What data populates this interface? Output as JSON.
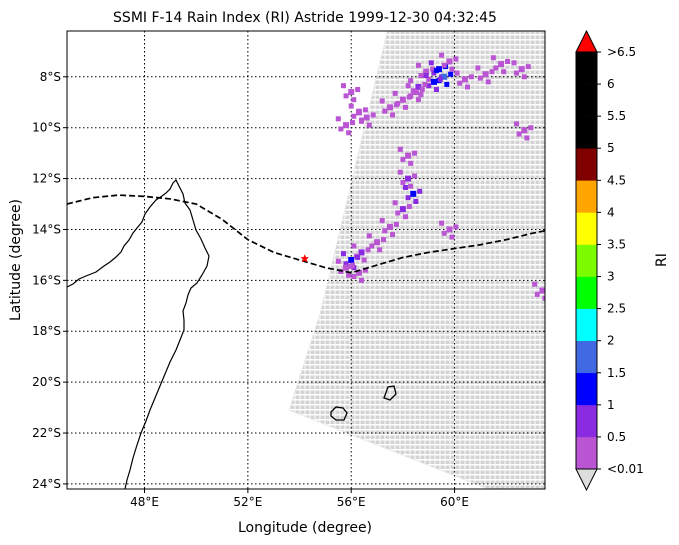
{
  "chart_data": {
    "type": "heatmap",
    "title": "SSMI F-14 Rain Index (RI) Astride 1999-12-30 04:32:45",
    "xlabel": "Longitude (degree)",
    "ylabel": "Latitude (degree)",
    "xlim": [
      45,
      63.5
    ],
    "ylim": [
      -24.2,
      -6.2
    ],
    "x_ticks": [
      48,
      52,
      56,
      60
    ],
    "x_tick_labels": [
      "48°E",
      "52°E",
      "56°E",
      "60°E"
    ],
    "y_ticks": [
      -8,
      -10,
      -12,
      -14,
      -16,
      -18,
      -20,
      -22,
      -24
    ],
    "y_tick_labels": [
      "8°S",
      "10°S",
      "12°S",
      "14°S",
      "16°S",
      "18°S",
      "20°S",
      "22°S",
      "24°S"
    ],
    "grid": "dotted",
    "colorbar": {
      "label": "RI",
      "levels": [
        "<0.01",
        "0.5",
        "1",
        "1.5",
        "2",
        "2.5",
        "3",
        "3.5",
        "4",
        "4.5",
        "5",
        "5.5",
        "6",
        ">6.5"
      ],
      "colors": [
        "#ba55d3",
        "#8a2be2",
        "#0000ff",
        "#4169e1",
        "#00ffff",
        "#00ff00",
        "#7cfc00",
        "#ffff00",
        "#ffa500",
        "#800000",
        "#000000",
        "#000000",
        "#000000"
      ],
      "over_color": "#ff0000",
      "under_color": "#dddddd"
    },
    "no_rain_color": "#d3d3d3",
    "swath": {
      "corners": [
        [
          57.4,
          -6.2
        ],
        [
          63.5,
          -6.2
        ],
        [
          63.5,
          -24.2
        ],
        [
          61.3,
          -24.2
        ],
        [
          53.6,
          -21.1
        ],
        [
          54.8,
          -17.3
        ]
      ]
    },
    "storm_track": {
      "style": "dashed",
      "lon": [
        45,
        46,
        47,
        48,
        49,
        50,
        51,
        52,
        53,
        54,
        55,
        56,
        57,
        58,
        59,
        60,
        61,
        62,
        63,
        63.5
      ],
      "lat": [
        -13.0,
        -12.75,
        -12.65,
        -12.7,
        -12.8,
        -13.0,
        -13.6,
        -14.4,
        -14.9,
        -15.2,
        -15.5,
        -15.7,
        -15.4,
        -15.1,
        -14.9,
        -14.75,
        -14.6,
        -14.4,
        -14.15,
        -14.05
      ]
    },
    "current_position": {
      "lon": 54.2,
      "lat": -15.15,
      "color": "#ff0000"
    },
    "rain_clusters": [
      {
        "lon": 58.9,
        "lat": -7.8,
        "level": 0.3
      },
      {
        "lon": 59.4,
        "lat": -7.7,
        "level": 1.2
      },
      {
        "lon": 59.6,
        "lat": -8.0,
        "level": 1.6
      },
      {
        "lon": 59.2,
        "lat": -8.2,
        "level": 1.1
      },
      {
        "lon": 59.8,
        "lat": -7.4,
        "level": 0.4
      },
      {
        "lon": 58.6,
        "lat": -8.4,
        "level": 0.5
      },
      {
        "lon": 58.5,
        "lat": -8.6,
        "level": 0.3
      },
      {
        "lon": 58.0,
        "lat": -8.9,
        "level": 0.2
      },
      {
        "lon": 57.5,
        "lat": -9.2,
        "level": 0.2
      },
      {
        "lon": 56.3,
        "lat": -9.4,
        "level": 0.3
      },
      {
        "lon": 56.6,
        "lat": -9.6,
        "level": 0.2
      },
      {
        "lon": 55.8,
        "lat": -9.9,
        "level": 0.4
      },
      {
        "lon": 56.0,
        "lat": -8.6,
        "level": 0.2
      },
      {
        "lon": 61.8,
        "lat": -7.5,
        "level": 0.3
      },
      {
        "lon": 62.6,
        "lat": -7.7,
        "level": 0.2
      },
      {
        "lon": 61.2,
        "lat": -7.9,
        "level": 0.2
      },
      {
        "lon": 60.4,
        "lat": -8.1,
        "level": 0.3
      },
      {
        "lon": 62.7,
        "lat": -10.1,
        "level": 0.2
      },
      {
        "lon": 58.2,
        "lat": -11.1,
        "level": 0.3
      },
      {
        "lon": 58.2,
        "lat": -12.0,
        "level": 0.6
      },
      {
        "lon": 58.4,
        "lat": -12.6,
        "level": 1.1
      },
      {
        "lon": 58.0,
        "lat": -13.2,
        "level": 0.5
      },
      {
        "lon": 57.5,
        "lat": -13.9,
        "level": 0.4
      },
      {
        "lon": 57.0,
        "lat": -14.5,
        "level": 0.3
      },
      {
        "lon": 56.4,
        "lat": -14.9,
        "level": 0.6
      },
      {
        "lon": 56.0,
        "lat": -15.2,
        "level": 1.1
      },
      {
        "lon": 55.8,
        "lat": -15.5,
        "level": 0.4
      },
      {
        "lon": 56.3,
        "lat": -15.7,
        "level": 0.3
      },
      {
        "lon": 59.8,
        "lat": -14.0,
        "level": 0.3
      },
      {
        "lon": 63.4,
        "lat": -16.4,
        "level": 0.2
      }
    ]
  }
}
